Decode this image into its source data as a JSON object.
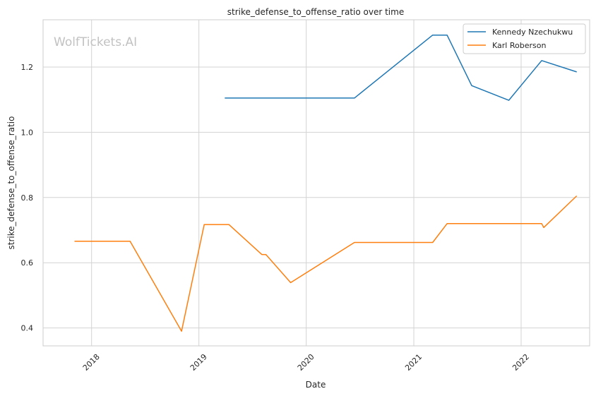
{
  "watermark": "WolfTickets.AI",
  "chart_data": {
    "type": "line",
    "title": "strike_defense_to_offense_ratio over time",
    "xlabel": "Date",
    "ylabel": "strike_defense_to_offense_ratio",
    "x_ticks": [
      "2018",
      "2019",
      "2020",
      "2021",
      "2022"
    ],
    "y_ticks": [
      0.4,
      0.6,
      0.8,
      1.0,
      1.2
    ],
    "ylim": [
      0.345,
      1.345
    ],
    "xlim": [
      "2017-07-20",
      "2022-08-22"
    ],
    "grid": true,
    "legend_position": "top-right",
    "series": [
      {
        "name": "Kennedy Nzechukwu",
        "color": "#1f77b4",
        "points": [
          {
            "x": "2019-03-30",
            "y": 1.105
          },
          {
            "x": "2020-06-13",
            "y": 1.105
          },
          {
            "x": "2021-03-06",
            "y": 1.298
          },
          {
            "x": "2021-04-24",
            "y": 1.298
          },
          {
            "x": "2021-07-17",
            "y": 1.143
          },
          {
            "x": "2021-11-20",
            "y": 1.098
          },
          {
            "x": "2022-03-12",
            "y": 1.22
          },
          {
            "x": "2022-07-09",
            "y": 1.185
          }
        ]
      },
      {
        "name": "Karl Roberson",
        "color": "#ff7f0e",
        "points": [
          {
            "x": "2017-11-04",
            "y": 0.666
          },
          {
            "x": "2018-05-12",
            "y": 0.666
          },
          {
            "x": "2018-11-03",
            "y": 0.39
          },
          {
            "x": "2019-01-19",
            "y": 0.717
          },
          {
            "x": "2019-04-13",
            "y": 0.717
          },
          {
            "x": "2019-08-03",
            "y": 0.625
          },
          {
            "x": "2019-08-17",
            "y": 0.625
          },
          {
            "x": "2019-11-09",
            "y": 0.539
          },
          {
            "x": "2020-06-13",
            "y": 0.662
          },
          {
            "x": "2021-03-06",
            "y": 0.662
          },
          {
            "x": "2021-04-24",
            "y": 0.72
          },
          {
            "x": "2022-03-12",
            "y": 0.72
          },
          {
            "x": "2022-03-19",
            "y": 0.708
          },
          {
            "x": "2022-07-09",
            "y": 0.805
          }
        ]
      }
    ]
  }
}
